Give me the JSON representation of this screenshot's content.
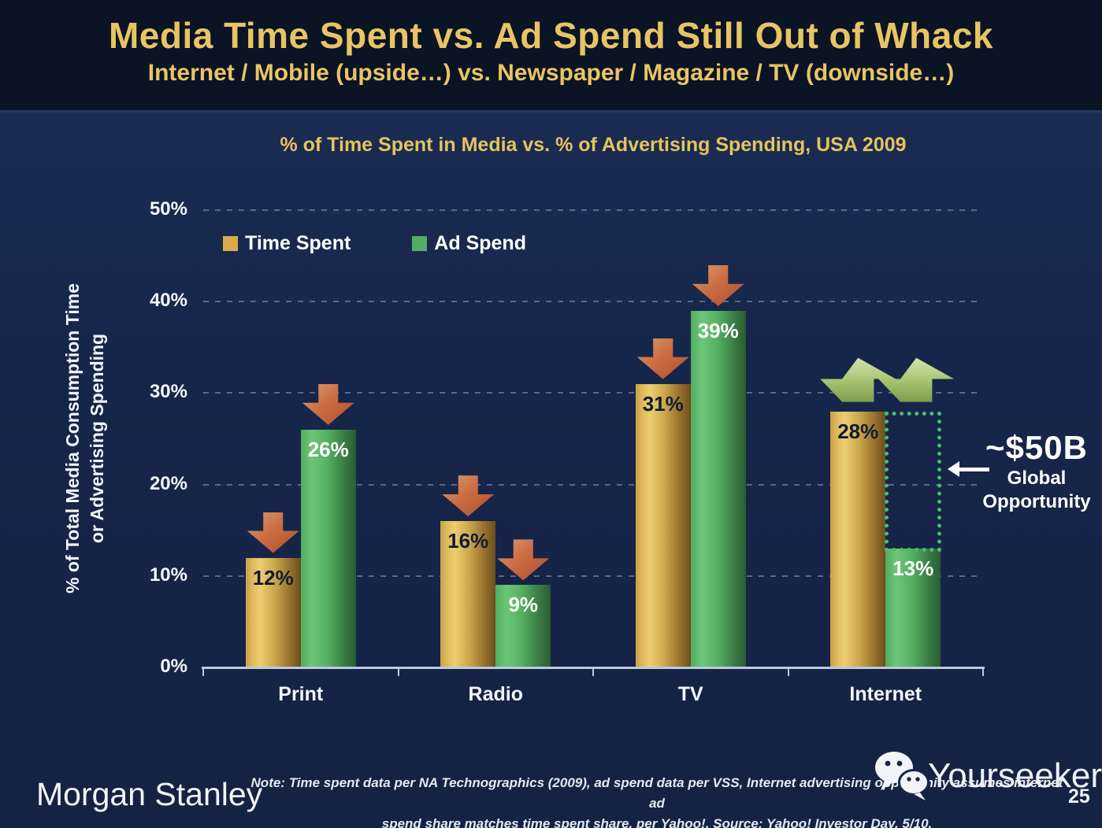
{
  "slide": {
    "title": "Media Time Spent vs. Ad Spend Still Out of Whack",
    "subtitle": "Internet / Mobile (upside…) vs. Newspaper / Magazine / TV (downside…)"
  },
  "chart_data": {
    "type": "bar",
    "title": "% of Time Spent in Media vs. % of Advertising Spending, USA 2009",
    "ylabel_line1": "% of Total Media Consumption Time",
    "ylabel_line2": "or Advertising Spending",
    "categories": [
      "Print",
      "Radio",
      "TV",
      "Internet"
    ],
    "series": [
      {
        "name": "Time Spent",
        "color": "#D8AB4A",
        "label_color": "#101b31",
        "values": [
          12,
          16,
          31,
          28
        ],
        "labels": [
          "12%",
          "16%",
          "31%",
          "28%"
        ]
      },
      {
        "name": "Ad Spend",
        "color": "#53AD63",
        "label_color": "#ffffff",
        "values": [
          26,
          9,
          39,
          13
        ],
        "labels": [
          "26%",
          "9%",
          "39%",
          "13%"
        ]
      }
    ],
    "ylim": [
      0,
      50
    ],
    "y_ticks": [
      "0%",
      "10%",
      "20%",
      "30%",
      "40%",
      "50%"
    ],
    "grid": "dotted horizontal gridlines at 10% steps",
    "legend_position": "top-left inside plot",
    "annotations": {
      "down_arrow_color": "#C05A32",
      "up_arrow_color": "#A9C675",
      "down_arrow_targets": [
        [
          0,
          0
        ],
        [
          0,
          1
        ],
        [
          1,
          0
        ],
        [
          1,
          1
        ],
        [
          2,
          0
        ],
        [
          2,
          1
        ]
      ],
      "up_arrow_category": 3,
      "opportunity": {
        "category": 3,
        "headline": "~$50B",
        "caption_line1": "Global",
        "caption_line2": "Opportunity",
        "box_color": "#47C06C"
      }
    }
  },
  "footer": {
    "brand": "Morgan Stanley",
    "note_line1": "Note: Time spent data per NA Technographics (2009), ad spend data per VSS, Internet advertising opportunity assumes internet ad",
    "note_line2": "spend share matches time spent share, per Yahoo!. Source: Yahoo! Investor Day, 5/10.",
    "watermark": "Yourseeker",
    "page_number": "25"
  }
}
